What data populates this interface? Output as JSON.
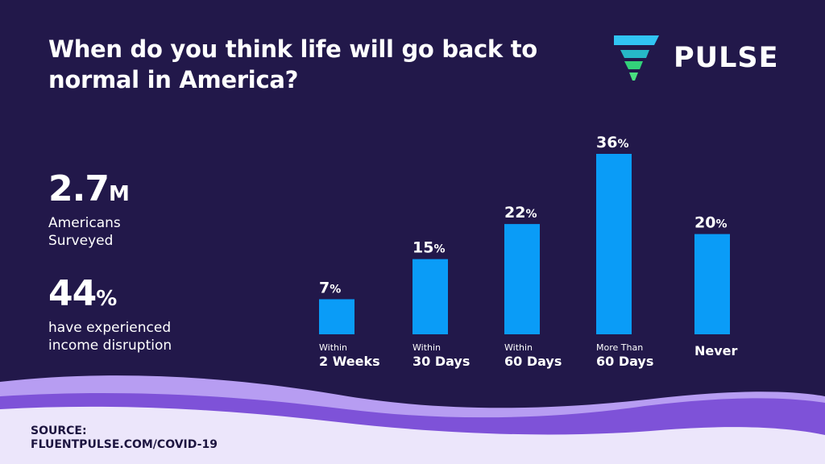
{
  "title": "When do you think life will go back to normal in America?",
  "logo": {
    "text": "PULSE",
    "icon": "pulse-logo-icon"
  },
  "stats": [
    {
      "value": "2.7",
      "unit": "M",
      "label_lines": [
        "Americans",
        "Surveyed"
      ]
    },
    {
      "value": "44",
      "unit": "%",
      "label_lines": [
        "have experienced",
        "income disruption"
      ]
    }
  ],
  "source": {
    "label": "SOURCE:",
    "text": "FLUENTPULSE.COM/COVID-19"
  },
  "colors": {
    "background": "#22184a",
    "bar": "#0a9cf7",
    "text": "#ffffff",
    "wave_light": "#b79df2",
    "wave_dark": "#7e52d8",
    "wave_pale": "#ece6fb"
  },
  "chart_data": {
    "type": "bar",
    "categories": [
      {
        "line1": "Within",
        "line2": "2 Weeks"
      },
      {
        "line1": "Within",
        "line2": "30 Days"
      },
      {
        "line1": "Within",
        "line2": "60 Days"
      },
      {
        "line1": "More Than",
        "line2": "60 Days"
      },
      {
        "line1": "",
        "line2": "Never"
      }
    ],
    "values": [
      7,
      15,
      22,
      36,
      20
    ],
    "value_labels": [
      "7%",
      "15%",
      "22%",
      "36%",
      "20%"
    ],
    "ylim": [
      0,
      36
    ],
    "grid": false,
    "legend": "none"
  }
}
